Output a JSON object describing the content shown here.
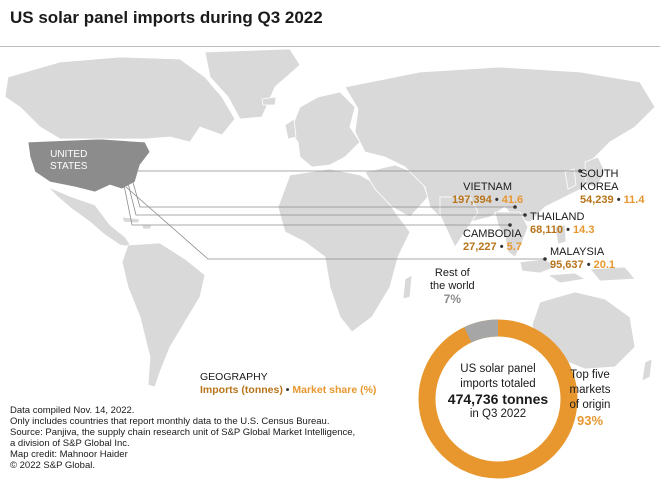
{
  "title": "US solar panel imports during Q3 2022",
  "colors": {
    "imports": "#b8741a",
    "share": "#e8972f",
    "land": "#d9d9d9",
    "us": "#8c8c8c",
    "rest": "#a6a6a6"
  },
  "us_label": {
    "line1": "UNITED",
    "line2": "STATES"
  },
  "countries": [
    {
      "key": "vietnam",
      "name": "VIETNAM",
      "imports": "197,394",
      "share": "41.6"
    },
    {
      "key": "south_korea",
      "name_line1": "SOUTH",
      "name_line2": "KOREA",
      "imports": "54,239",
      "share": "11.4"
    },
    {
      "key": "thailand",
      "name": "THAILAND",
      "imports": "68,110",
      "share": "14.3"
    },
    {
      "key": "cambodia",
      "name": "CAMBODIA",
      "imports": "27,227",
      "share": "5.7"
    },
    {
      "key": "malaysia",
      "name": "MALAYSIA",
      "imports": "95,637",
      "share": "20.1"
    }
  ],
  "separator": "•",
  "rest": {
    "line1": "Rest of",
    "line2": "the world",
    "pct": "7%",
    "value": 7
  },
  "donut": {
    "line1": "US solar panel",
    "line2": "imports totaled",
    "total": "474,736 tonnes",
    "line4": "in Q3 2022",
    "top_share": 93,
    "rest_share": 7
  },
  "top5": {
    "line1": "Top five",
    "line2": "markets",
    "line3": "of origin",
    "pct": "93%"
  },
  "legend": {
    "title": "Geography",
    "imports": "Imports (tonnes)",
    "sep": "•",
    "share": "Market share (%)"
  },
  "footnotes": [
    "Data compiled Nov. 14, 2022.",
    "Only includes countries that report monthly data to the U.S. Census Bureau.",
    "Source: Panjiva, the supply chain research unit of S&P Global Market Intelligence,",
    "a division of S&P Global Inc.",
    "Map credit: Mahnoor Haider",
    "© 2022 S&P Global."
  ]
}
